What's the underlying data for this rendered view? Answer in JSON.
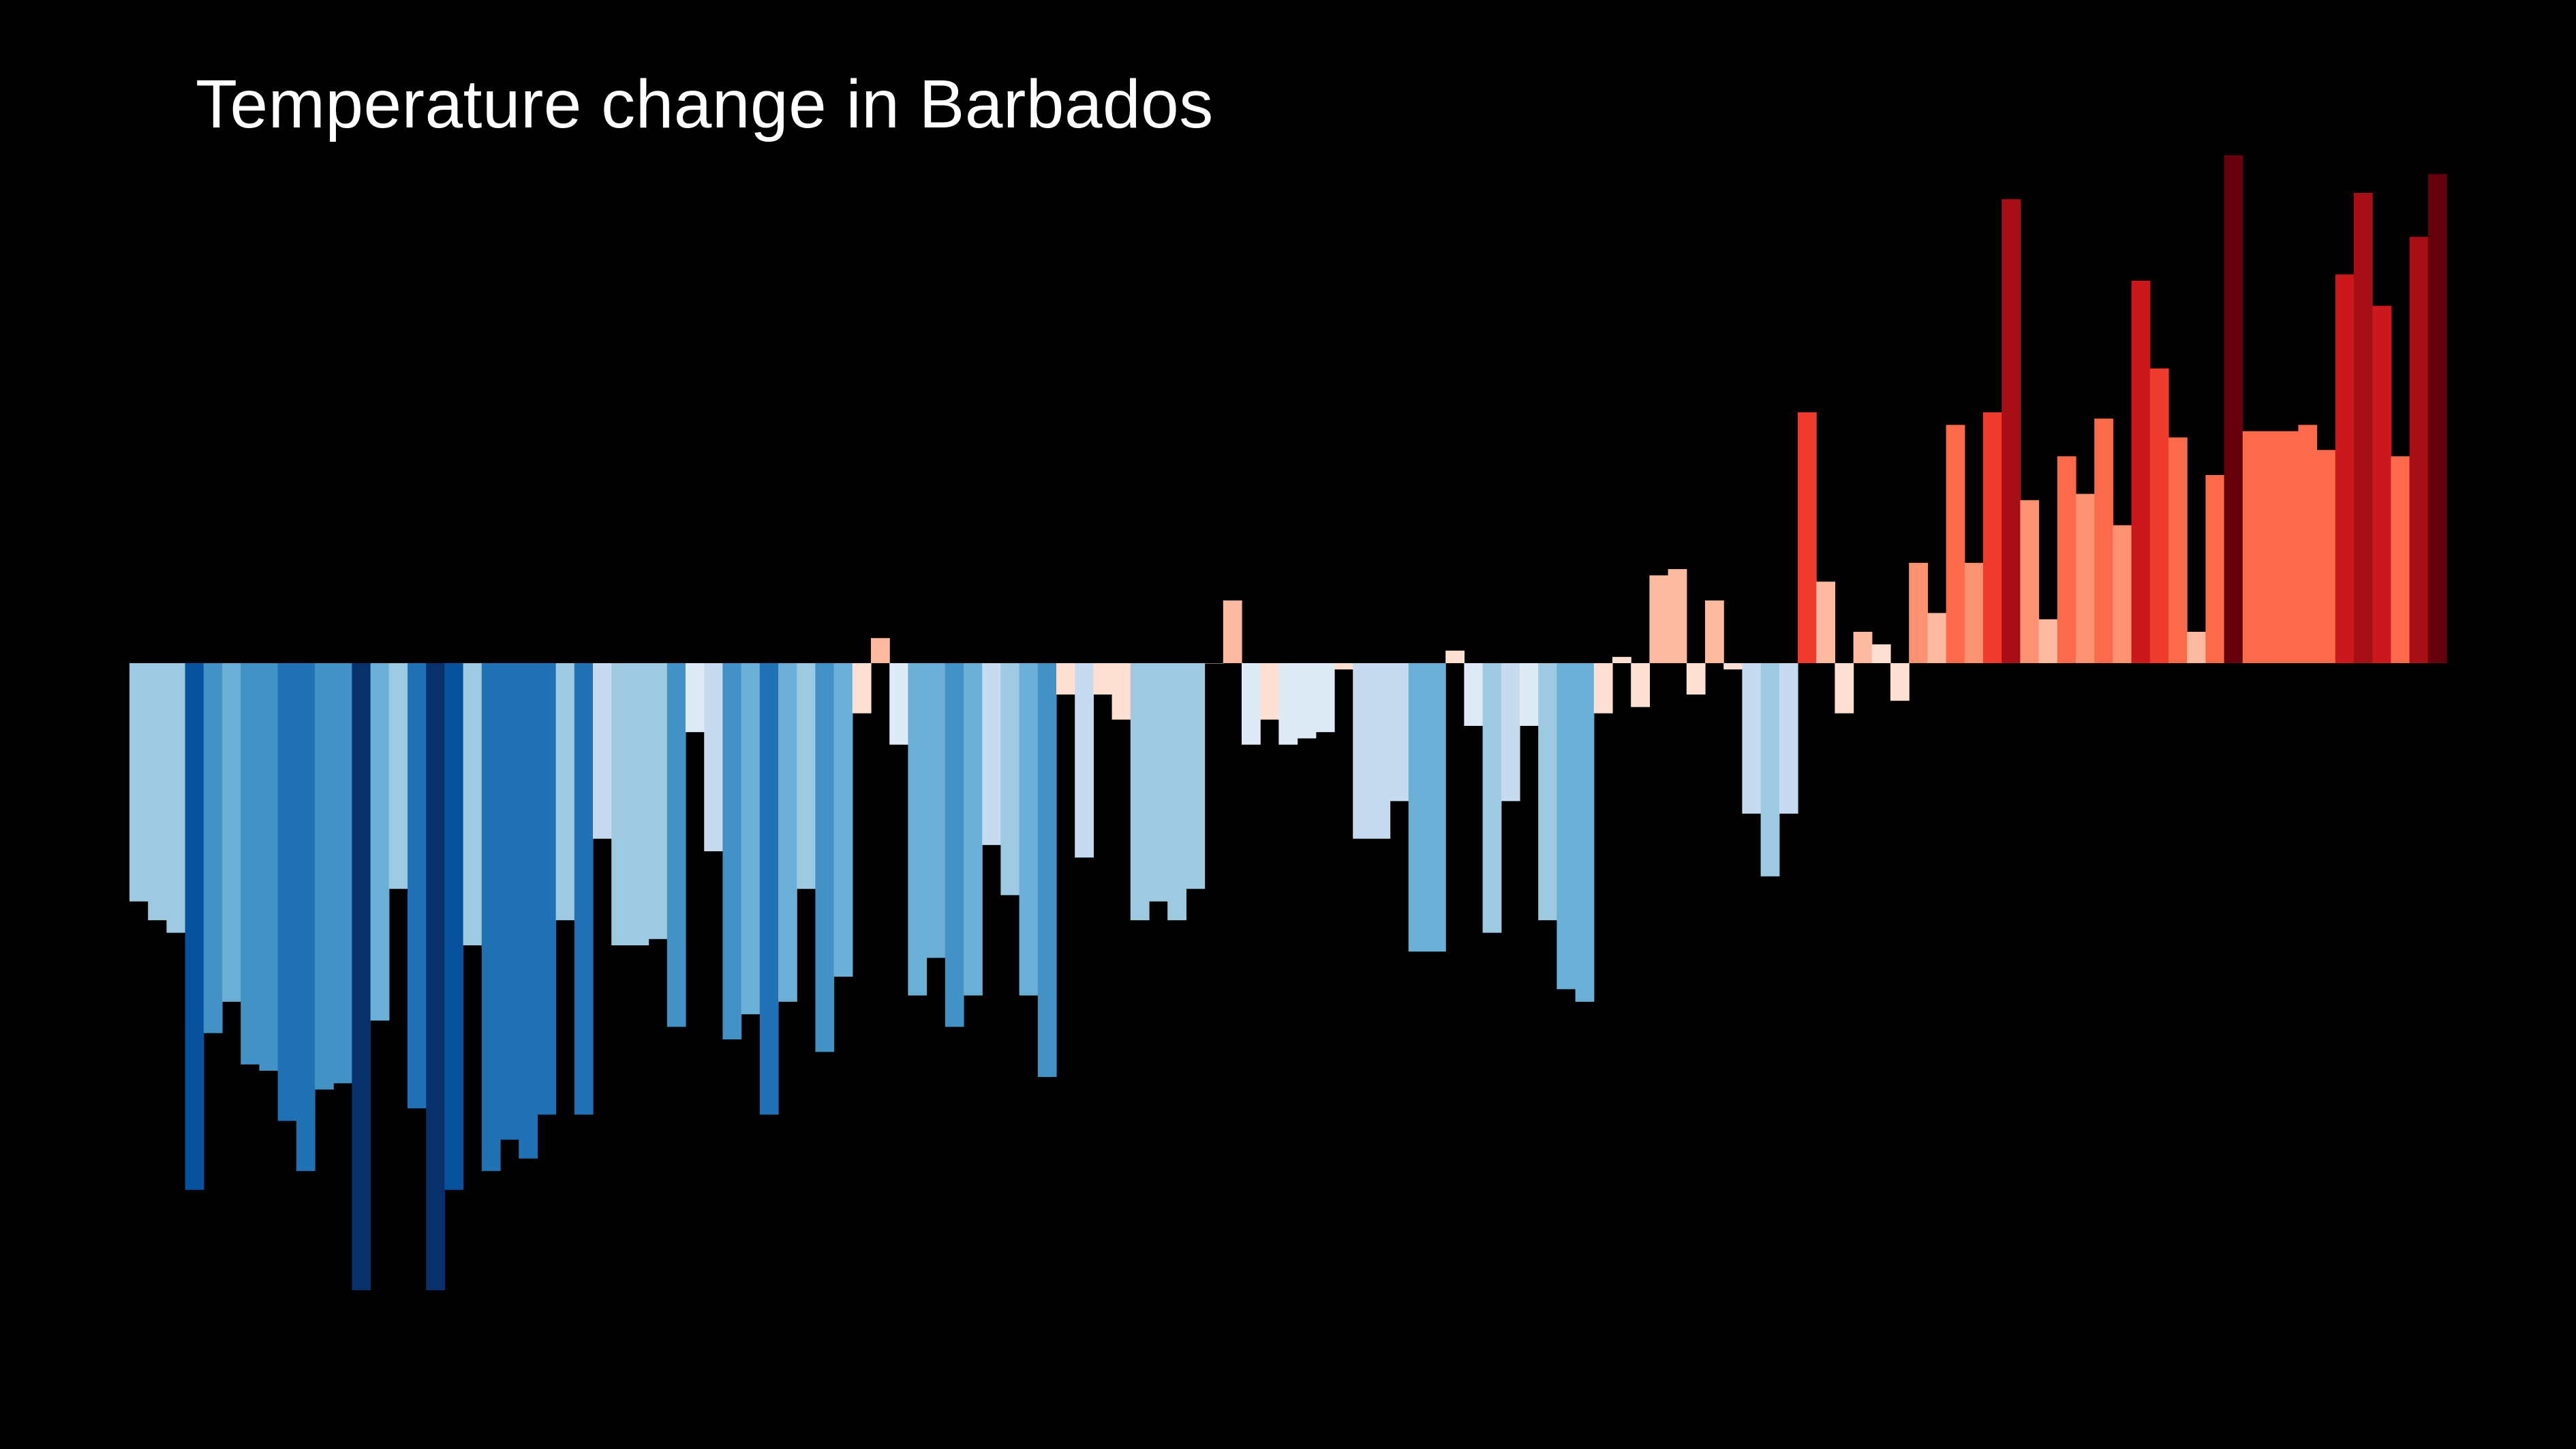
{
  "chart_data": {
    "type": "bar",
    "title": "Temperature change in Barbados",
    "xlabel": "",
    "ylabel": "",
    "ylim": [
      -1.0,
      0.82
    ],
    "grid": false,
    "legend": "none",
    "colors": {
      "background": "#000000",
      "title": "#ffffff",
      "scale": [
        "#08306b",
        "#08519c",
        "#2171b5",
        "#4292c6",
        "#6baed6",
        "#9ecae1",
        "#c6dbef",
        "#deebf7",
        "#fee0d2",
        "#fcbba1",
        "#fc9272",
        "#fb6a4a",
        "#ef3b2c",
        "#cb181d",
        "#a50f15",
        "#67000d"
      ]
    },
    "values": [
      -0.38,
      -0.41,
      -0.43,
      -0.84,
      -0.59,
      -0.54,
      -0.64,
      -0.65,
      -0.73,
      -0.81,
      -0.68,
      -0.67,
      -1.0,
      -0.57,
      -0.36,
      -0.71,
      -1.0,
      -0.84,
      -0.45,
      -0.81,
      -0.76,
      -0.79,
      -0.72,
      -0.41,
      -0.72,
      -0.28,
      -0.45,
      -0.45,
      -0.44,
      -0.58,
      -0.11,
      -0.3,
      -0.6,
      -0.56,
      -0.72,
      -0.54,
      -0.36,
      -0.62,
      -0.5,
      -0.08,
      0.04,
      -0.13,
      -0.53,
      -0.47,
      -0.58,
      -0.53,
      -0.29,
      -0.37,
      -0.53,
      -0.66,
      -0.05,
      -0.31,
      -0.05,
      -0.09,
      -0.41,
      -0.38,
      -0.41,
      -0.36,
      0.0,
      0.1,
      -0.13,
      -0.09,
      -0.13,
      -0.12,
      -0.11,
      -0.01,
      -0.28,
      -0.28,
      -0.22,
      -0.46,
      -0.46,
      0.02,
      -0.1,
      -0.43,
      -0.22,
      -0.1,
      -0.41,
      -0.52,
      -0.54,
      -0.08,
      0.01,
      -0.07,
      0.14,
      0.15,
      -0.05,
      0.1,
      -0.01,
      -0.24,
      -0.34,
      -0.24,
      0.4,
      0.13,
      -0.08,
      0.05,
      0.03,
      -0.06,
      0.16,
      0.08,
      0.38,
      0.16,
      0.4,
      0.74,
      0.26,
      0.07,
      0.33,
      0.27,
      0.39,
      0.22,
      0.61,
      0.47,
      0.36,
      0.05,
      0.3,
      0.81,
      0.37,
      0.37,
      0.37,
      0.38,
      0.34,
      0.62,
      0.75,
      0.57,
      0.33,
      0.68,
      0.78
    ]
  }
}
